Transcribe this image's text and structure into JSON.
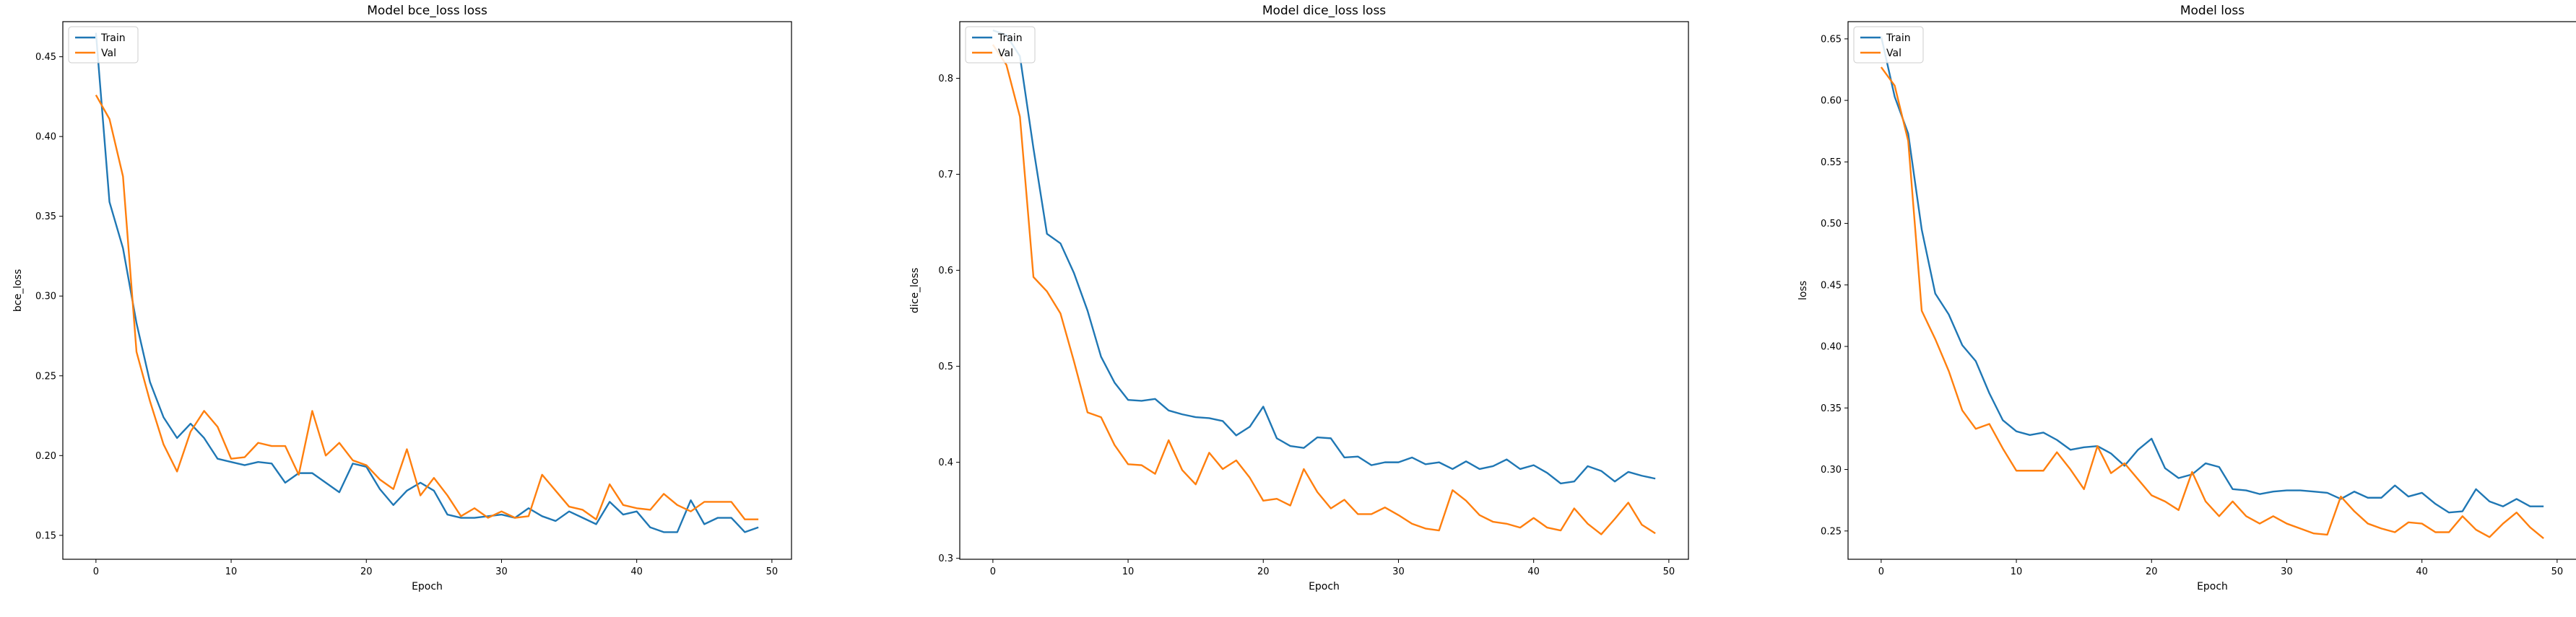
{
  "chart_data": [
    {
      "type": "line",
      "title": "Model bce_loss loss",
      "xlabel": "Epoch",
      "ylabel": "bce_loss",
      "xlim": [
        -2.45,
        51.45
      ],
      "ylim": [
        0.135,
        0.472
      ],
      "xticks": [
        0,
        10,
        20,
        30,
        40,
        50
      ],
      "yticks": [
        0.15,
        0.2,
        0.25,
        0.3,
        0.35,
        0.4,
        0.45
      ],
      "ytick_labels": [
        "0.15",
        "0.20",
        "0.25",
        "0.30",
        "0.35",
        "0.40",
        "0.45"
      ],
      "legend": {
        "location": "upper left",
        "entries": [
          "Train",
          "Val"
        ]
      },
      "series": [
        {
          "name": "Train",
          "color": "#1f77b4",
          "values": [
            0.465,
            0.359,
            0.33,
            0.283,
            0.246,
            0.224,
            0.211,
            0.22,
            0.211,
            0.198,
            0.196,
            0.194,
            0.196,
            0.195,
            0.183,
            0.189,
            0.189,
            0.183,
            0.177,
            0.195,
            0.193,
            0.179,
            0.169,
            0.178,
            0.183,
            0.178,
            0.163,
            0.161,
            0.161,
            0.162,
            0.163,
            0.161,
            0.167,
            0.162,
            0.159,
            0.165,
            0.161,
            0.157,
            0.171,
            0.163,
            0.165,
            0.155,
            0.152,
            0.152,
            0.172,
            0.157,
            0.161,
            0.161,
            0.152,
            0.155
          ]
        },
        {
          "name": "Val",
          "color": "#ff7f0e",
          "values": [
            0.426,
            0.411,
            0.375,
            0.265,
            0.234,
            0.207,
            0.19,
            0.215,
            0.228,
            0.218,
            0.198,
            0.199,
            0.208,
            0.206,
            0.206,
            0.188,
            0.228,
            0.2,
            0.208,
            0.197,
            0.194,
            0.185,
            0.179,
            0.204,
            0.175,
            0.186,
            0.175,
            0.162,
            0.167,
            0.161,
            0.165,
            0.161,
            0.162,
            0.188,
            0.178,
            0.168,
            0.166,
            0.16,
            0.182,
            0.169,
            0.167,
            0.166,
            0.176,
            0.169,
            0.165,
            0.171,
            0.171,
            0.171,
            0.16,
            0.16
          ]
        }
      ]
    },
    {
      "type": "line",
      "title": "Model dice_loss loss",
      "xlabel": "Epoch",
      "ylabel": "dice_loss",
      "xlim": [
        -2.45,
        51.45
      ],
      "ylim": [
        0.299,
        0.859
      ],
      "xticks": [
        0,
        10,
        20,
        30,
        40,
        50
      ],
      "yticks": [
        0.3,
        0.4,
        0.5,
        0.6,
        0.7,
        0.8
      ],
      "ytick_labels": [
        "0.3",
        "0.4",
        "0.5",
        "0.6",
        "0.7",
        "0.8"
      ],
      "legend": {
        "location": "upper left",
        "entries": [
          "Train",
          "Val"
        ]
      },
      "series": [
        {
          "name": "Train",
          "color": "#1f77b4",
          "values": [
            0.85,
            0.845,
            0.823,
            0.727,
            0.638,
            0.628,
            0.597,
            0.558,
            0.51,
            0.483,
            0.465,
            0.464,
            0.466,
            0.454,
            0.45,
            0.447,
            0.446,
            0.443,
            0.428,
            0.437,
            0.458,
            0.425,
            0.417,
            0.415,
            0.426,
            0.425,
            0.405,
            0.406,
            0.397,
            0.4,
            0.4,
            0.405,
            0.398,
            0.4,
            0.393,
            0.401,
            0.393,
            0.396,
            0.403,
            0.393,
            0.397,
            0.389,
            0.378,
            0.38,
            0.396,
            0.391,
            0.38,
            0.39,
            0.386,
            0.383
          ]
        },
        {
          "name": "Val",
          "color": "#ff7f0e",
          "values": [
            0.835,
            0.814,
            0.76,
            0.593,
            0.578,
            0.555,
            0.505,
            0.452,
            0.447,
            0.418,
            0.398,
            0.397,
            0.388,
            0.423,
            0.392,
            0.377,
            0.41,
            0.393,
            0.402,
            0.384,
            0.36,
            0.362,
            0.355,
            0.393,
            0.369,
            0.352,
            0.361,
            0.346,
            0.346,
            0.353,
            0.345,
            0.336,
            0.331,
            0.329,
            0.371,
            0.36,
            0.345,
            0.338,
            0.336,
            0.332,
            0.342,
            0.332,
            0.329,
            0.352,
            0.336,
            0.325,
            0.341,
            0.358,
            0.335,
            0.326
          ]
        }
      ]
    },
    {
      "type": "line",
      "title": "Model loss",
      "xlabel": "Epoch",
      "ylabel": "loss",
      "xlim": [
        -2.45,
        51.45
      ],
      "ylim": [
        0.227,
        0.664
      ],
      "xticks": [
        0,
        10,
        20,
        30,
        40,
        50
      ],
      "yticks": [
        0.25,
        0.3,
        0.35,
        0.4,
        0.45,
        0.5,
        0.55,
        0.6,
        0.65
      ],
      "ytick_labels": [
        "0.25",
        "0.30",
        "0.35",
        "0.40",
        "0.45",
        "0.50",
        "0.55",
        "0.60",
        "0.65"
      ],
      "legend": {
        "location": "upper left",
        "entries": [
          "Train",
          "Val"
        ]
      },
      "series": [
        {
          "name": "Train",
          "color": "#1f77b4",
          "values": [
            0.652,
            0.603,
            0.573,
            0.495,
            0.443,
            0.426,
            0.401,
            0.388,
            0.362,
            0.34,
            0.331,
            0.328,
            0.33,
            0.324,
            0.316,
            0.318,
            0.319,
            0.313,
            0.303,
            0.316,
            0.325,
            0.301,
            0.293,
            0.296,
            0.305,
            0.302,
            0.284,
            0.283,
            0.28,
            0.282,
            0.283,
            0.283,
            0.282,
            0.281,
            0.276,
            0.282,
            0.277,
            0.277,
            0.287,
            0.278,
            0.281,
            0.272,
            0.265,
            0.266,
            0.284,
            0.274,
            0.27,
            0.276,
            0.27,
            0.27
          ]
        },
        {
          "name": "Val",
          "color": "#ff7f0e",
          "values": [
            0.627,
            0.612,
            0.567,
            0.429,
            0.406,
            0.38,
            0.348,
            0.333,
            0.337,
            0.317,
            0.299,
            0.299,
            0.299,
            0.314,
            0.3,
            0.284,
            0.319,
            0.297,
            0.305,
            0.292,
            0.279,
            0.274,
            0.267,
            0.298,
            0.274,
            0.262,
            0.274,
            0.262,
            0.256,
            0.262,
            0.256,
            0.252,
            0.248,
            0.247,
            0.278,
            0.266,
            0.256,
            0.252,
            0.249,
            0.257,
            0.256,
            0.249,
            0.249,
            0.262,
            0.251,
            0.245,
            0.256,
            0.265,
            0.253,
            0.244
          ]
        }
      ]
    }
  ]
}
